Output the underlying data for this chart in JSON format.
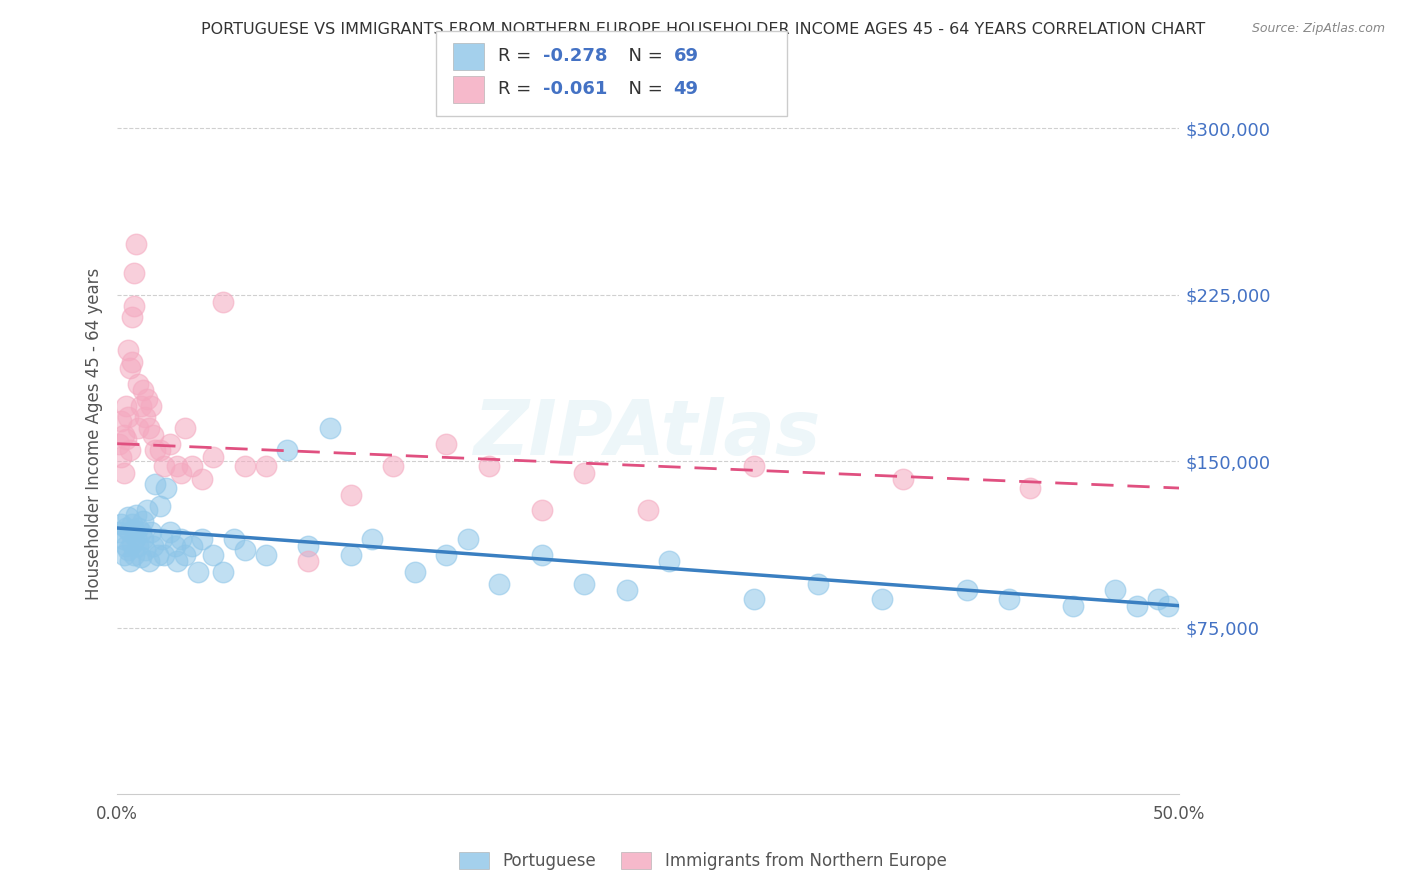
{
  "title": "PORTUGUESE VS IMMIGRANTS FROM NORTHERN EUROPE HOUSEHOLDER INCOME AGES 45 - 64 YEARS CORRELATION CHART",
  "source": "Source: ZipAtlas.com",
  "ylabel": "Householder Income Ages 45 - 64 years",
  "xlim": [
    0.0,
    0.5
  ],
  "ylim": [
    0,
    325000
  ],
  "yticks_right": [
    75000,
    150000,
    225000,
    300000
  ],
  "ytick_labels_right": [
    "$75,000",
    "$150,000",
    "$225,000",
    "$300,000"
  ],
  "blue_R": -0.278,
  "blue_N": 69,
  "pink_R": -0.061,
  "pink_N": 49,
  "blue_color": "#8dc5e8",
  "pink_color": "#f4a8bf",
  "blue_line_color": "#3a7fc1",
  "pink_line_color": "#e05080",
  "watermark": "ZIPAtlas",
  "legend_label_blue": "Portuguese",
  "legend_label_pink": "Immigrants from Northern Europe",
  "blue_points_x": [
    0.001,
    0.002,
    0.003,
    0.003,
    0.004,
    0.004,
    0.005,
    0.005,
    0.006,
    0.006,
    0.007,
    0.007,
    0.008,
    0.008,
    0.009,
    0.009,
    0.01,
    0.01,
    0.011,
    0.011,
    0.012,
    0.012,
    0.013,
    0.014,
    0.015,
    0.016,
    0.017,
    0.018,
    0.019,
    0.02,
    0.021,
    0.022,
    0.023,
    0.025,
    0.027,
    0.028,
    0.03,
    0.032,
    0.035,
    0.038,
    0.04,
    0.045,
    0.05,
    0.055,
    0.06,
    0.07,
    0.08,
    0.09,
    0.1,
    0.11,
    0.12,
    0.14,
    0.155,
    0.165,
    0.18,
    0.2,
    0.22,
    0.24,
    0.26,
    0.3,
    0.33,
    0.36,
    0.4,
    0.42,
    0.45,
    0.47,
    0.48,
    0.49,
    0.495
  ],
  "blue_points_y": [
    118000,
    122000,
    115000,
    108000,
    120000,
    112000,
    125000,
    110000,
    118000,
    105000,
    122000,
    113000,
    119000,
    108000,
    116000,
    126000,
    112000,
    120000,
    107000,
    118000,
    115000,
    123000,
    110000,
    128000,
    105000,
    118000,
    112000,
    140000,
    108000,
    130000,
    115000,
    108000,
    138000,
    118000,
    112000,
    105000,
    115000,
    108000,
    112000,
    100000,
    115000,
    108000,
    100000,
    115000,
    110000,
    108000,
    155000,
    112000,
    165000,
    108000,
    115000,
    100000,
    108000,
    115000,
    95000,
    108000,
    95000,
    92000,
    105000,
    88000,
    95000,
    88000,
    92000,
    88000,
    85000,
    92000,
    85000,
    88000,
    85000
  ],
  "pink_points_x": [
    0.001,
    0.002,
    0.002,
    0.003,
    0.003,
    0.004,
    0.004,
    0.005,
    0.005,
    0.006,
    0.006,
    0.007,
    0.007,
    0.008,
    0.008,
    0.009,
    0.01,
    0.01,
    0.011,
    0.012,
    0.013,
    0.014,
    0.015,
    0.016,
    0.017,
    0.018,
    0.02,
    0.022,
    0.025,
    0.028,
    0.03,
    0.032,
    0.035,
    0.04,
    0.045,
    0.05,
    0.06,
    0.07,
    0.09,
    0.11,
    0.13,
    0.155,
    0.175,
    0.2,
    0.22,
    0.25,
    0.3,
    0.37,
    0.43
  ],
  "pink_points_y": [
    158000,
    168000,
    152000,
    162000,
    145000,
    175000,
    160000,
    200000,
    170000,
    192000,
    155000,
    215000,
    195000,
    235000,
    220000,
    248000,
    185000,
    165000,
    175000,
    182000,
    170000,
    178000,
    165000,
    175000,
    162000,
    155000,
    155000,
    148000,
    158000,
    148000,
    145000,
    165000,
    148000,
    142000,
    152000,
    222000,
    148000,
    148000,
    105000,
    135000,
    148000,
    158000,
    148000,
    128000,
    145000,
    128000,
    148000,
    142000,
    138000
  ]
}
